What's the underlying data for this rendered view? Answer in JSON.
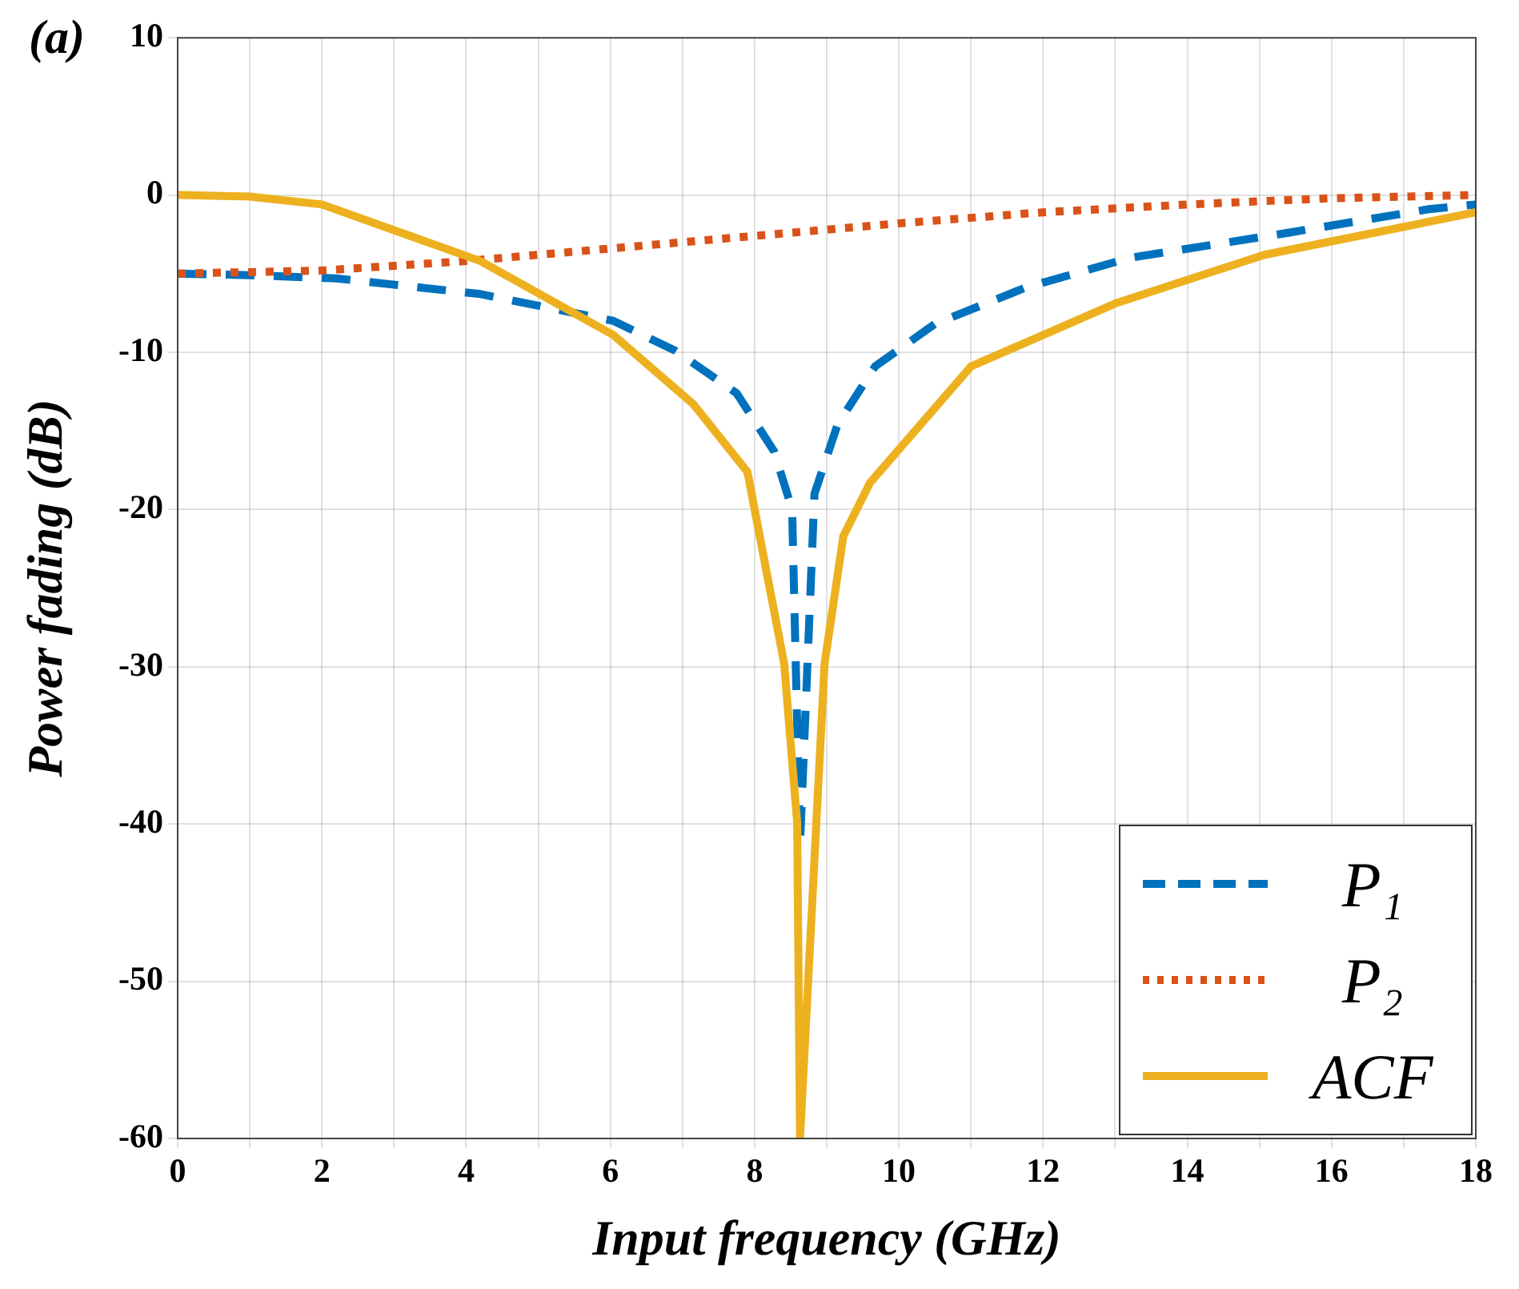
{
  "chart_data": {
    "type": "line",
    "xlabel": "Input frequency (GHz)",
    "ylabel": "Power fading (dB)",
    "annotations": [
      "(a)"
    ],
    "xlim": [
      0,
      18
    ],
    "ylim": [
      -60,
      10
    ],
    "xticks": [
      0,
      {
        "value": 1,
        "label": null
      },
      2,
      {
        "value": 3,
        "label": null
      },
      4,
      {
        "value": 5,
        "label": null
      },
      6,
      {
        "value": 7,
        "label": null
      },
      8,
      {
        "value": 9,
        "label": null
      },
      10,
      {
        "value": 11,
        "label": null
      },
      12,
      {
        "value": 13,
        "label": null
      },
      14,
      {
        "value": 15,
        "label": null
      },
      16,
      {
        "value": 17,
        "label": null
      },
      18
    ],
    "yticks": [
      -60,
      -50,
      -40,
      -30,
      -20,
      -10,
      0,
      10
    ],
    "grid": true,
    "legend": "bottom right",
    "series": [
      {
        "name": "P₁",
        "color": "#0072bd",
        "line_style": "dashed",
        "x": [
          0,
          1,
          2.2,
          4.2,
          6.04,
          6.9,
          7.75,
          8.27,
          8.52,
          8.63,
          8.83,
          9.15,
          9.67,
          10.5,
          11.75,
          13.2,
          15.4,
          17.35,
          18
        ],
        "values": [
          -5,
          -5.1,
          -5.3,
          -6.3,
          -8,
          -9.9,
          -12.6,
          -16.3,
          -20,
          -41.3,
          -19,
          -14.6,
          -10.9,
          -8.2,
          -5.9,
          -4,
          -2.4,
          -0.9,
          -0.6
        ]
      },
      {
        "name": "P₂",
        "color": "#d95319",
        "line_style": "dotted",
        "x": [
          0,
          2,
          4,
          6,
          8,
          10,
          12,
          14,
          16,
          18
        ],
        "values": [
          -5,
          -4.8,
          -4.2,
          -3.4,
          -2.6,
          -1.8,
          -1.1,
          -0.6,
          -0.2,
          0
        ]
      },
      {
        "name": "ACF",
        "color": "#edb120",
        "line_style": "solid",
        "x": [
          0,
          1,
          2,
          4.2,
          6.04,
          7.15,
          7.9,
          8.41,
          8.59,
          8.63,
          8.97,
          9.23,
          9.6,
          11,
          13,
          15.07,
          18
        ],
        "values": [
          0,
          -0.1,
          -0.6,
          -4.2,
          -8.9,
          -13.3,
          -17.6,
          -29.8,
          -39.9,
          -60,
          -29.8,
          -21.7,
          -18.3,
          -10.9,
          -6.9,
          -3.8,
          -1.1
        ]
      }
    ]
  }
}
